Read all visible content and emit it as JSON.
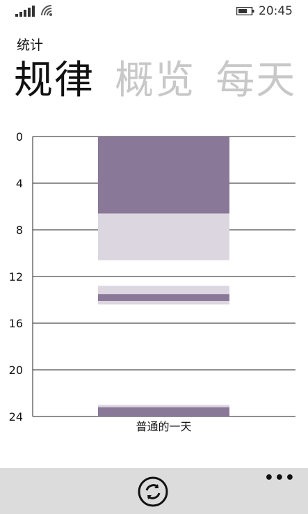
{
  "status": {
    "time": "20:45"
  },
  "app": {
    "title": "统计"
  },
  "pivot": {
    "items": [
      "规律",
      "概览",
      "每天"
    ],
    "active_index": 0
  },
  "chart_data": {
    "type": "bar",
    "categories": [
      "普通的一天"
    ],
    "y_ticks": [
      "0",
      "4",
      "8",
      "12",
      "16",
      "20",
      "24"
    ],
    "ylim": [
      0,
      24
    ],
    "y_inverted": true,
    "series": [
      {
        "color": "#8a7898",
        "segments": [
          [
            0,
            6.6
          ],
          [
            13.5,
            14.1
          ],
          [
            23.2,
            24
          ]
        ]
      },
      {
        "color": "#dcd6e0",
        "segments": [
          [
            6.6,
            10.6
          ],
          [
            12.8,
            13.5
          ],
          [
            14.1,
            14.4
          ],
          [
            23.0,
            23.2
          ]
        ]
      }
    ]
  },
  "app_bar": {
    "more_label": "•••",
    "sync_icon": "sync-icon"
  }
}
